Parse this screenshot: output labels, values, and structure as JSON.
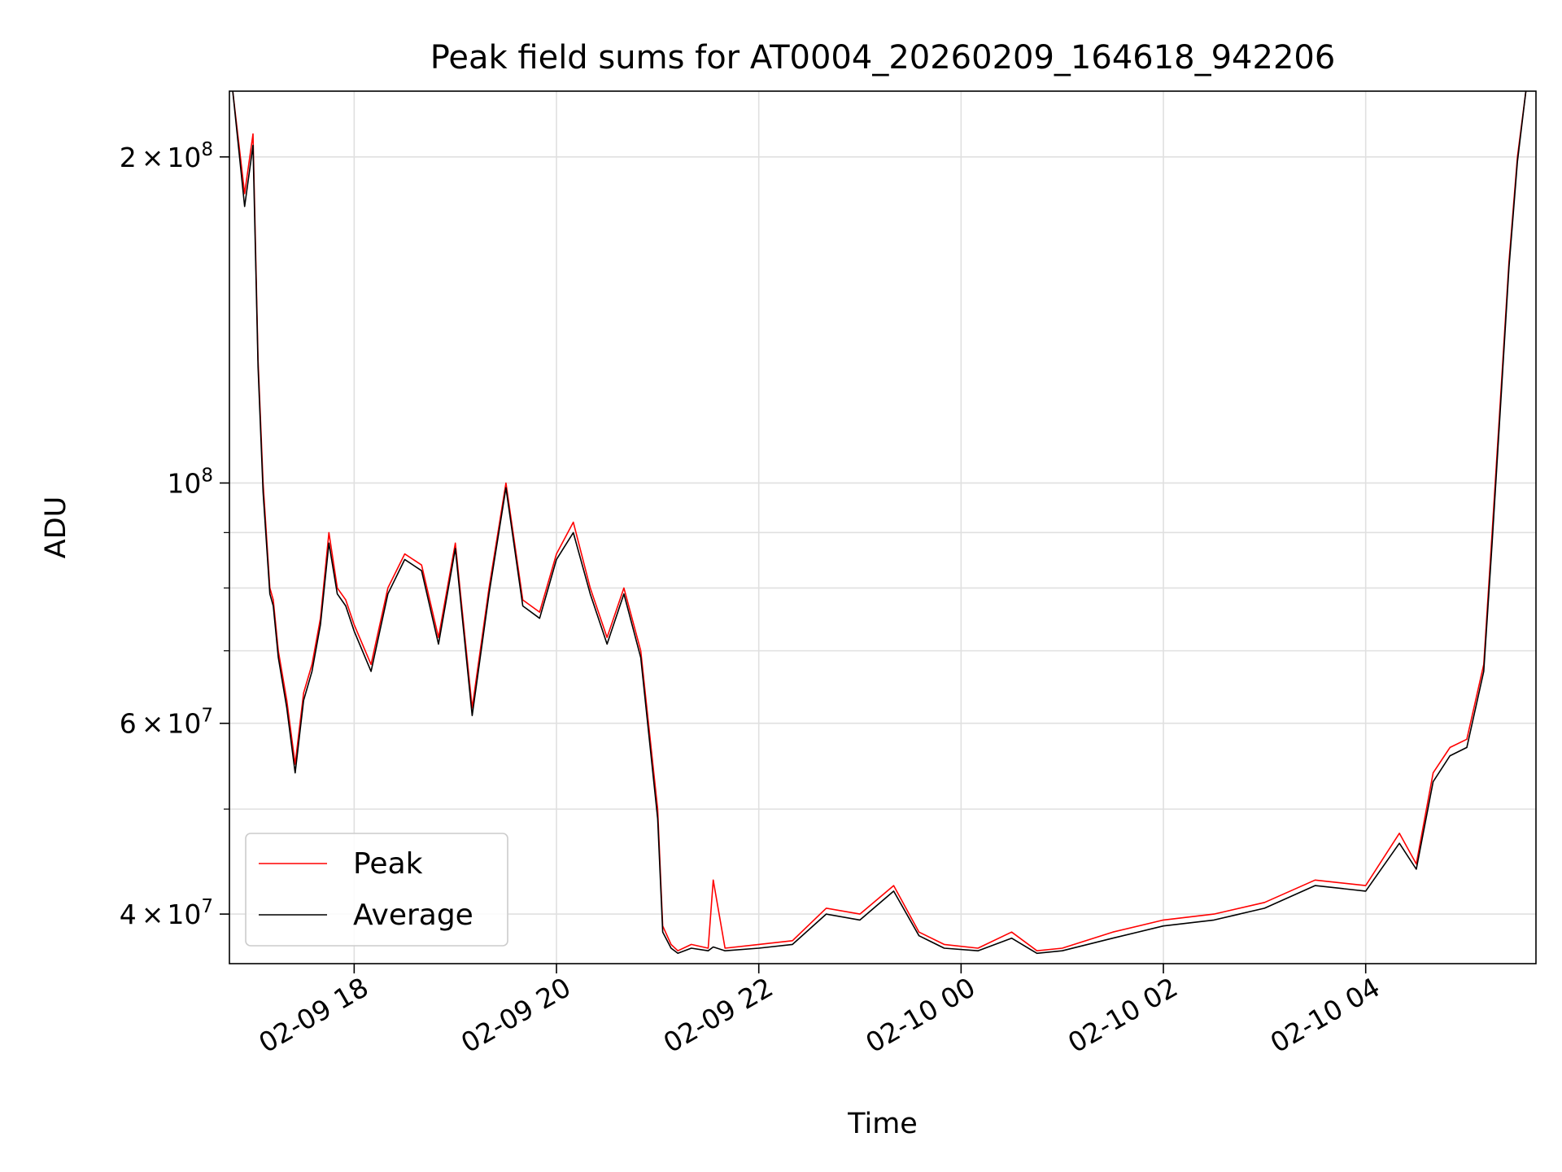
{
  "chart_data": {
    "type": "line",
    "title": "Peak field sums for AT0004_20260209_164618_942206",
    "xlabel": "Time",
    "ylabel": "ADU",
    "yscale": "log",
    "grid": true,
    "legend_position": "lower-left",
    "xlim": [
      "2026-02-09 16:46",
      "2026-02-10 05:41"
    ],
    "ylim": [
      36000000,
      230000000
    ],
    "x_ticks": [
      {
        "value": "2026-02-09 18:00",
        "label": "02-09 18"
      },
      {
        "value": "2026-02-09 20:00",
        "label": "02-09 20"
      },
      {
        "value": "2026-02-09 22:00",
        "label": "02-09 22"
      },
      {
        "value": "2026-02-10 00:00",
        "label": "02-10 00"
      },
      {
        "value": "2026-02-10 02:00",
        "label": "02-10 02"
      },
      {
        "value": "2026-02-10 04:00",
        "label": "02-10 04"
      }
    ],
    "y_ticks": [
      {
        "value": 40000000,
        "base": "4",
        "exp": "7"
      },
      {
        "value": 60000000,
        "base": "6",
        "exp": "7"
      },
      {
        "value": 100000000,
        "base": "",
        "exp": "8"
      },
      {
        "value": 200000000,
        "base": "2",
        "exp": "8"
      }
    ],
    "y_minor_ticks": [
      50000000,
      70000000,
      80000000,
      90000000
    ],
    "series": [
      {
        "name": "Peak",
        "color": "#ff0000",
        "x": [
          "2026-02-09 16:48",
          "2026-02-09 16:55",
          "2026-02-09 17:00",
          "2026-02-09 17:03",
          "2026-02-09 17:06",
          "2026-02-09 17:10",
          "2026-02-09 17:12",
          "2026-02-09 17:15",
          "2026-02-09 17:20",
          "2026-02-09 17:25",
          "2026-02-09 17:30",
          "2026-02-09 17:35",
          "2026-02-09 17:40",
          "2026-02-09 17:45",
          "2026-02-09 17:50",
          "2026-02-09 17:55",
          "2026-02-09 18:00",
          "2026-02-09 18:10",
          "2026-02-09 18:20",
          "2026-02-09 18:30",
          "2026-02-09 18:40",
          "2026-02-09 18:50",
          "2026-02-09 19:00",
          "2026-02-09 19:10",
          "2026-02-09 19:20",
          "2026-02-09 19:30",
          "2026-02-09 19:40",
          "2026-02-09 19:50",
          "2026-02-09 20:00",
          "2026-02-09 20:10",
          "2026-02-09 20:20",
          "2026-02-09 20:30",
          "2026-02-09 20:40",
          "2026-02-09 20:50",
          "2026-02-09 21:00",
          "2026-02-09 21:03",
          "2026-02-09 21:08",
          "2026-02-09 21:12",
          "2026-02-09 21:20",
          "2026-02-09 21:30",
          "2026-02-09 21:33",
          "2026-02-09 21:40",
          "2026-02-09 22:00",
          "2026-02-09 22:20",
          "2026-02-09 22:40",
          "2026-02-09 23:00",
          "2026-02-09 23:20",
          "2026-02-09 23:35",
          "2026-02-09 23:50",
          "2026-02-10 00:10",
          "2026-02-10 00:30",
          "2026-02-10 00:45",
          "2026-02-10 01:00",
          "2026-02-10 01:30",
          "2026-02-10 02:00",
          "2026-02-10 02:30",
          "2026-02-10 03:00",
          "2026-02-10 03:30",
          "2026-02-10 04:00",
          "2026-02-10 04:20",
          "2026-02-10 04:30",
          "2026-02-10 04:40",
          "2026-02-10 04:50",
          "2026-02-10 05:00",
          "2026-02-10 05:10",
          "2026-02-10 05:15",
          "2026-02-10 05:20",
          "2026-02-10 05:25",
          "2026-02-10 05:30",
          "2026-02-10 05:35"
        ],
        "values": [
          230000000,
          185000000,
          210000000,
          130000000,
          100000000,
          80000000,
          78000000,
          70000000,
          63000000,
          55000000,
          64000000,
          68000000,
          75000000,
          90000000,
          80000000,
          78000000,
          74000000,
          68000000,
          80000000,
          86000000,
          84000000,
          72000000,
          88000000,
          62000000,
          80000000,
          100000000,
          78000000,
          76000000,
          86000000,
          92000000,
          80000000,
          72000000,
          80000000,
          70000000,
          50000000,
          39000000,
          37500000,
          37000000,
          37500000,
          37200000,
          43000000,
          37200000,
          37500000,
          37800000,
          40500000,
          40000000,
          42500000,
          38500000,
          37500000,
          37200000,
          38500000,
          37000000,
          37200000,
          38500000,
          39500000,
          40000000,
          41000000,
          43000000,
          42500000,
          47500000,
          44500000,
          54000000,
          57000000,
          58000000,
          68000000,
          90000000,
          120000000,
          160000000,
          200000000,
          230000000
        ]
      },
      {
        "name": "Average",
        "color": "#000000",
        "x": [
          "2026-02-09 16:48",
          "2026-02-09 16:55",
          "2026-02-09 17:00",
          "2026-02-09 17:03",
          "2026-02-09 17:06",
          "2026-02-09 17:10",
          "2026-02-09 17:12",
          "2026-02-09 17:15",
          "2026-02-09 17:20",
          "2026-02-09 17:25",
          "2026-02-09 17:30",
          "2026-02-09 17:35",
          "2026-02-09 17:40",
          "2026-02-09 17:45",
          "2026-02-09 17:50",
          "2026-02-09 17:55",
          "2026-02-09 18:00",
          "2026-02-09 18:10",
          "2026-02-09 18:20",
          "2026-02-09 18:30",
          "2026-02-09 18:40",
          "2026-02-09 18:50",
          "2026-02-09 19:00",
          "2026-02-09 19:10",
          "2026-02-09 19:20",
          "2026-02-09 19:30",
          "2026-02-09 19:40",
          "2026-02-09 19:50",
          "2026-02-09 20:00",
          "2026-02-09 20:10",
          "2026-02-09 20:20",
          "2026-02-09 20:30",
          "2026-02-09 20:40",
          "2026-02-09 20:50",
          "2026-02-09 21:00",
          "2026-02-09 21:03",
          "2026-02-09 21:08",
          "2026-02-09 21:12",
          "2026-02-09 21:20",
          "2026-02-09 21:30",
          "2026-02-09 21:33",
          "2026-02-09 21:40",
          "2026-02-09 22:00",
          "2026-02-09 22:20",
          "2026-02-09 22:40",
          "2026-02-09 23:00",
          "2026-02-09 23:20",
          "2026-02-09 23:35",
          "2026-02-09 23:50",
          "2026-02-10 00:10",
          "2026-02-10 00:30",
          "2026-02-10 00:45",
          "2026-02-10 01:00",
          "2026-02-10 01:30",
          "2026-02-10 02:00",
          "2026-02-10 02:30",
          "2026-02-10 03:00",
          "2026-02-10 03:30",
          "2026-02-10 04:00",
          "2026-02-10 04:20",
          "2026-02-10 04:30",
          "2026-02-10 04:40",
          "2026-02-10 04:50",
          "2026-02-10 05:00",
          "2026-02-10 05:10",
          "2026-02-10 05:15",
          "2026-02-10 05:20",
          "2026-02-10 05:25",
          "2026-02-10 05:30",
          "2026-02-10 05:35"
        ],
        "values": [
          230000000,
          180000000,
          205000000,
          128000000,
          98000000,
          79000000,
          77000000,
          69000000,
          62000000,
          54000000,
          63000000,
          67000000,
          74000000,
          88000000,
          79000000,
          77000000,
          73000000,
          67000000,
          79000000,
          85000000,
          83000000,
          71000000,
          87000000,
          61000000,
          79000000,
          99000000,
          77000000,
          75000000,
          85000000,
          90000000,
          79000000,
          71000000,
          79000000,
          69000000,
          49000000,
          38500000,
          37200000,
          36800000,
          37200000,
          37000000,
          37300000,
          37000000,
          37200000,
          37500000,
          40000000,
          39500000,
          42000000,
          38200000,
          37200000,
          37000000,
          38000000,
          36800000,
          37000000,
          38000000,
          39000000,
          39500000,
          40500000,
          42500000,
          42000000,
          46500000,
          44000000,
          53000000,
          56000000,
          57000000,
          67000000,
          88000000,
          118000000,
          158000000,
          198000000,
          230000000
        ]
      }
    ]
  }
}
